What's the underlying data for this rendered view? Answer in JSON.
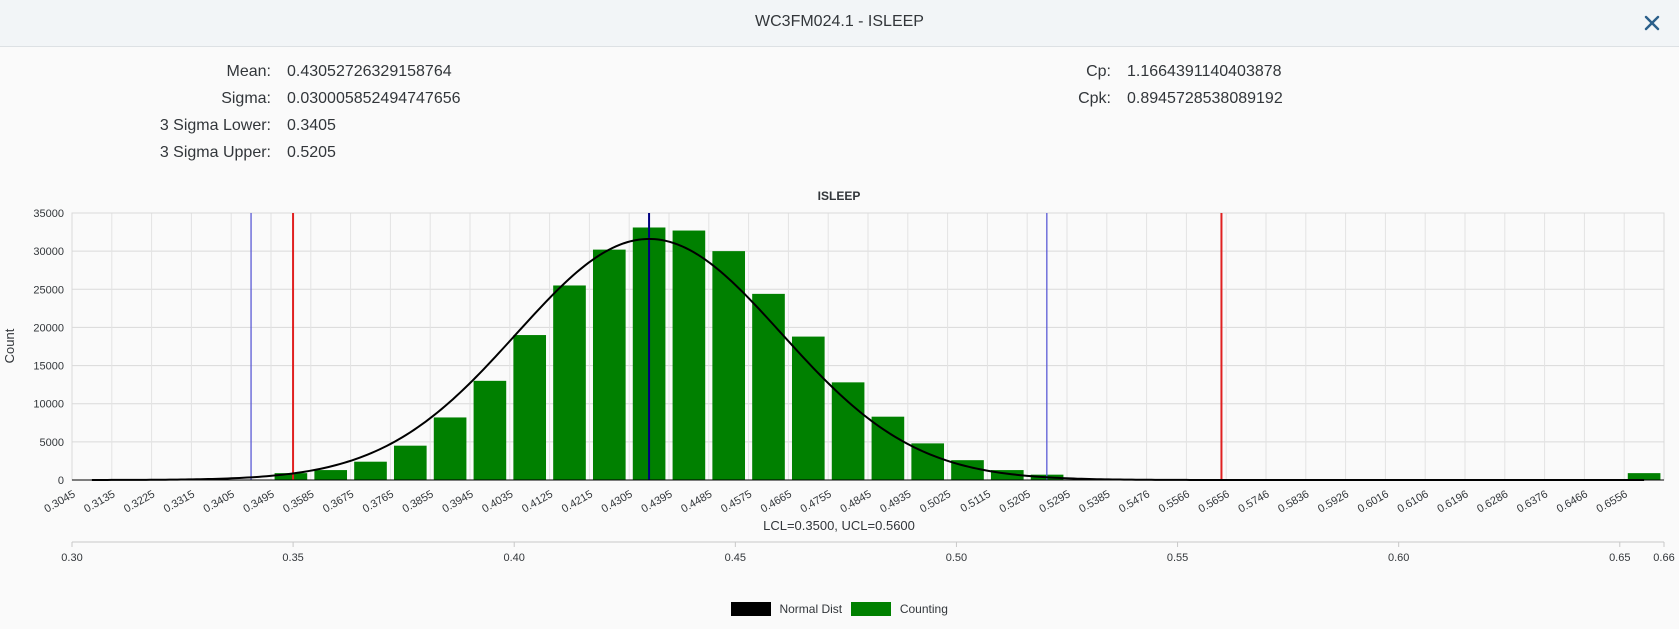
{
  "header": {
    "title": "WC3FM024.1 - ISLEEP",
    "close_icon": "close-icon"
  },
  "stats_left": [
    {
      "label": "Mean:",
      "value": "0.43052726329158764"
    },
    {
      "label": "Sigma:",
      "value": "0.030005852494747656"
    },
    {
      "label": "3 Sigma Lower:",
      "value": "0.3405"
    },
    {
      "label": "3 Sigma Upper:",
      "value": "0.5205"
    }
  ],
  "stats_right": [
    {
      "label": "Cp:",
      "value": "1.1664391140403878"
    },
    {
      "label": "Cpk:",
      "value": "0.8945728538089192"
    }
  ],
  "legend": [
    {
      "name": "Normal Dist",
      "color": "#000000"
    },
    {
      "name": "Counting",
      "color": "#008000"
    }
  ],
  "chart_data": {
    "type": "bar",
    "title": "ISLEEP",
    "ylabel": "Count",
    "xlabel": "LCL=0.3500, UCL=0.5600",
    "ylim": [
      0,
      35000
    ],
    "yticks": [
      0,
      5000,
      10000,
      15000,
      20000,
      25000,
      30000,
      35000
    ],
    "grid": true,
    "legend_position": "bottom",
    "categories": [
      "0.3045",
      "0.3135",
      "0.3225",
      "0.3315",
      "0.3405",
      "0.3495",
      "0.3585",
      "0.3675",
      "0.3765",
      "0.3855",
      "0.3945",
      "0.4035",
      "0.4125",
      "0.4215",
      "0.4305",
      "0.4395",
      "0.4485",
      "0.4575",
      "0.4665",
      "0.4755",
      "0.4845",
      "0.4935",
      "0.5025",
      "0.5115",
      "0.5205",
      "0.5295",
      "0.5385",
      "0.5476",
      "0.5566",
      "0.5656",
      "0.5746",
      "0.5836",
      "0.5926",
      "0.6016",
      "0.6106",
      "0.6196",
      "0.6286",
      "0.6376",
      "0.6466",
      "0.6556"
    ],
    "series": [
      {
        "name": "Counting",
        "type": "bar",
        "color": "#008000",
        "values": [
          0,
          0,
          0,
          0,
          50,
          900,
          1300,
          2400,
          4500,
          8200,
          13000,
          19000,
          25500,
          30200,
          33100,
          32700,
          30000,
          24400,
          18800,
          12800,
          8300,
          4800,
          2600,
          1300,
          700,
          0,
          0,
          0,
          0,
          0,
          0,
          0,
          0,
          0,
          0,
          0,
          0,
          0,
          0,
          900
        ]
      },
      {
        "name": "Normal Dist",
        "type": "line",
        "color": "#000000",
        "mean": 0.43052726329158764,
        "sigma": 0.030005852494747656,
        "peak": 31600
      }
    ],
    "reference_lines": [
      {
        "label": "3 Sigma Lower",
        "value": 0.3405,
        "color": "#5b5bd6"
      },
      {
        "label": "LCL",
        "value": 0.35,
        "color": "#e02020"
      },
      {
        "label": "Mean",
        "value": 0.43052726329158764,
        "color": "#000080"
      },
      {
        "label": "3 Sigma Upper",
        "value": 0.5205,
        "color": "#5b5bd6"
      },
      {
        "label": "UCL",
        "value": 0.56,
        "color": "#e02020"
      }
    ],
    "secondary_axis": {
      "range": [
        0.3,
        0.66
      ],
      "ticks": [
        {
          "value": 0.3,
          "label": "0.30"
        },
        {
          "value": 0.35,
          "label": "0.35"
        },
        {
          "value": 0.4,
          "label": "0.40"
        },
        {
          "value": 0.45,
          "label": "0.45"
        },
        {
          "value": 0.5,
          "label": "0.50"
        },
        {
          "value": 0.55,
          "label": "0.55"
        },
        {
          "value": 0.6,
          "label": "0.60"
        },
        {
          "value": 0.65,
          "label": "0.65"
        },
        {
          "value": 0.66,
          "label": "0.66"
        }
      ]
    }
  }
}
